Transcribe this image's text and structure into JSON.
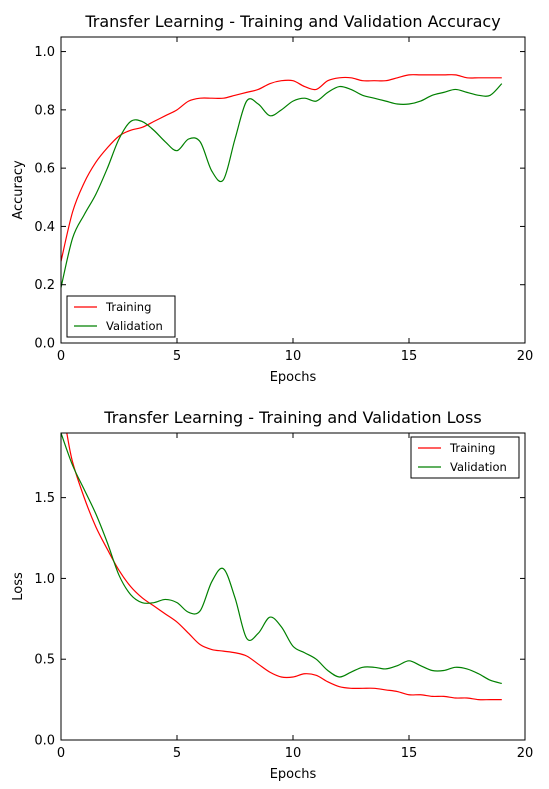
{
  "chart_data": [
    {
      "type": "line",
      "title": "Transfer Learning - Training and Validation Accuracy",
      "xlabel": "Epochs",
      "ylabel": "Accuracy",
      "xlim": [
        0,
        20
      ],
      "ylim": [
        0.0,
        1.05
      ],
      "xticks": [
        0,
        5,
        10,
        15,
        20
      ],
      "xtick_labels": [
        "0",
        "5",
        "10",
        "15",
        "20"
      ],
      "yticks": [
        0.0,
        0.2,
        0.4,
        0.6,
        0.8,
        1.0
      ],
      "ytick_labels": [
        "0.0",
        "0.2",
        "0.4",
        "0.6",
        "0.8",
        "1.0"
      ],
      "grid": false,
      "legend_position": "lower-left",
      "series": [
        {
          "name": "Training",
          "color": "#ff0000",
          "x": [
            0,
            0.5,
            1,
            1.5,
            2,
            2.5,
            3,
            3.5,
            4,
            4.5,
            5,
            5.5,
            6,
            6.5,
            7,
            7.5,
            8,
            8.5,
            9,
            9.5,
            10,
            10.5,
            11,
            11.5,
            12,
            12.5,
            13,
            13.5,
            14,
            14.5,
            15,
            15.5,
            16,
            16.5,
            17,
            17.5,
            18,
            18.5,
            19
          ],
          "y": [
            0.28,
            0.45,
            0.55,
            0.62,
            0.67,
            0.71,
            0.73,
            0.74,
            0.76,
            0.78,
            0.8,
            0.83,
            0.84,
            0.84,
            0.84,
            0.85,
            0.86,
            0.87,
            0.89,
            0.9,
            0.9,
            0.88,
            0.87,
            0.9,
            0.91,
            0.91,
            0.9,
            0.9,
            0.9,
            0.91,
            0.92,
            0.92,
            0.92,
            0.92,
            0.92,
            0.91,
            0.91,
            0.91,
            0.91
          ]
        },
        {
          "name": "Validation",
          "color": "#008000",
          "x": [
            0,
            0.5,
            1,
            1.5,
            2,
            2.5,
            3,
            3.5,
            4,
            4.5,
            5,
            5.5,
            6,
            6.5,
            7,
            7.5,
            8,
            8.5,
            9,
            9.5,
            10,
            10.5,
            11,
            11.5,
            12,
            12.5,
            13,
            13.5,
            14,
            14.5,
            15,
            15.5,
            16,
            16.5,
            17,
            17.5,
            18,
            18.5,
            19
          ],
          "y": [
            0.19,
            0.36,
            0.44,
            0.51,
            0.6,
            0.7,
            0.76,
            0.76,
            0.73,
            0.69,
            0.66,
            0.7,
            0.69,
            0.59,
            0.56,
            0.7,
            0.83,
            0.82,
            0.78,
            0.8,
            0.83,
            0.84,
            0.83,
            0.86,
            0.88,
            0.87,
            0.85,
            0.84,
            0.83,
            0.82,
            0.82,
            0.83,
            0.85,
            0.86,
            0.87,
            0.86,
            0.85,
            0.85,
            0.89
          ]
        }
      ]
    },
    {
      "type": "line",
      "title": "Transfer Learning - Training and Validation Loss",
      "xlabel": "Epochs",
      "ylabel": "Loss",
      "xlim": [
        0,
        20
      ],
      "ylim": [
        0.0,
        1.9
      ],
      "xticks": [
        0,
        5,
        10,
        15,
        20
      ],
      "xtick_labels": [
        "0",
        "5",
        "10",
        "15",
        "20"
      ],
      "yticks": [
        0.0,
        0.5,
        1.0,
        1.5
      ],
      "ytick_labels": [
        "0.0",
        "0.5",
        "1.0",
        "1.5"
      ],
      "grid": false,
      "legend_position": "upper-right",
      "series": [
        {
          "name": "Training",
          "color": "#ff0000",
          "x": [
            0.25,
            0.5,
            1,
            1.5,
            2,
            2.5,
            3,
            3.5,
            4,
            4.5,
            5,
            5.5,
            6,
            6.5,
            7,
            7.5,
            8,
            8.5,
            9,
            9.5,
            10,
            10.5,
            11,
            11.5,
            12,
            12.5,
            13,
            13.5,
            14,
            14.5,
            15,
            15.5,
            16,
            16.5,
            17,
            17.5,
            18,
            18.5,
            19
          ],
          "y": [
            1.9,
            1.72,
            1.5,
            1.32,
            1.18,
            1.05,
            0.95,
            0.88,
            0.83,
            0.78,
            0.73,
            0.66,
            0.59,
            0.56,
            0.55,
            0.54,
            0.52,
            0.47,
            0.42,
            0.39,
            0.39,
            0.41,
            0.4,
            0.36,
            0.33,
            0.32,
            0.32,
            0.32,
            0.31,
            0.3,
            0.28,
            0.28,
            0.27,
            0.27,
            0.26,
            0.26,
            0.25,
            0.25,
            0.25
          ]
        },
        {
          "name": "Validation",
          "color": "#008000",
          "x": [
            0,
            0.5,
            1,
            1.5,
            2,
            2.5,
            3,
            3.5,
            4,
            4.5,
            5,
            5.5,
            6,
            6.5,
            7,
            7.5,
            8,
            8.5,
            9,
            9.5,
            10,
            10.5,
            11,
            11.5,
            12,
            12.5,
            13,
            13.5,
            14,
            14.5,
            15,
            15.5,
            16,
            16.5,
            17,
            17.5,
            18,
            18.5,
            19
          ],
          "y": [
            1.9,
            1.7,
            1.55,
            1.4,
            1.22,
            1.02,
            0.9,
            0.85,
            0.85,
            0.87,
            0.85,
            0.79,
            0.8,
            0.98,
            1.06,
            0.88,
            0.63,
            0.66,
            0.76,
            0.7,
            0.58,
            0.54,
            0.5,
            0.43,
            0.39,
            0.42,
            0.45,
            0.45,
            0.44,
            0.46,
            0.49,
            0.46,
            0.43,
            0.43,
            0.45,
            0.44,
            0.41,
            0.37,
            0.35
          ]
        }
      ]
    }
  ]
}
